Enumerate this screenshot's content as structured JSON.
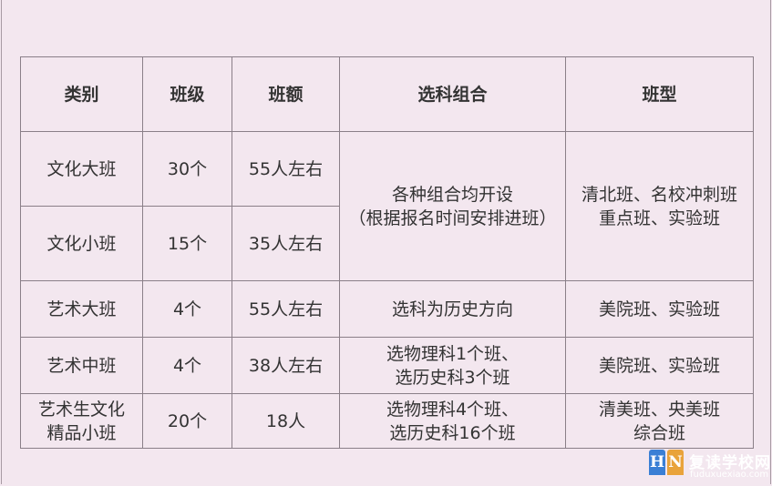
{
  "table": {
    "headers": [
      "类别",
      "班级",
      "班额",
      "选科组合",
      "班型"
    ],
    "rows": [
      {
        "category": "文化大班",
        "classes": "30个",
        "size": "55人左右"
      },
      {
        "category": "文化小班",
        "classes": "15个",
        "size": "35人左右"
      },
      {
        "category": "艺术大班",
        "classes": "4个",
        "size": "55人左右",
        "subjects": "选科为历史方向",
        "type": "美院班、实验班"
      },
      {
        "category": "艺术中班",
        "classes": "4个",
        "size": "38人左右",
        "subjects_l1": "选物理科1个班、",
        "subjects_l2": "选历史科3个班",
        "type": "美院班、实验班"
      },
      {
        "category_l1": "艺术生文化",
        "category_l2": "精品小班",
        "classes": "20个",
        "size": "18人",
        "subjects_l1": "选物理科4个班、",
        "subjects_l2": "选历史科16个班",
        "type_l1": "清美班、央美班",
        "type_l2": "综合班"
      }
    ],
    "merged_subjects_l1": "各种组合均开设",
    "merged_subjects_l2": "（根据报名时间安排进班）",
    "merged_type_l1": "清北班、名校冲刺班",
    "merged_type_l2": "重点班、实验班"
  },
  "watermark": {
    "h": "H",
    "n": "N",
    "name": "复读学校网",
    "url": "fuduxuexiao.com"
  }
}
